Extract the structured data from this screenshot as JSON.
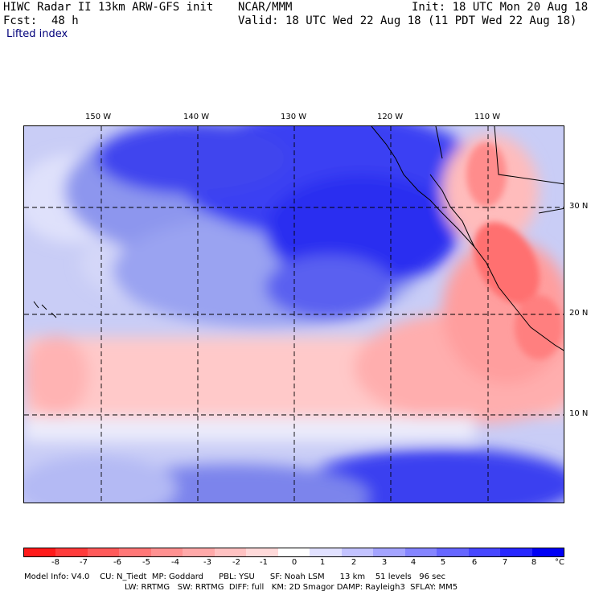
{
  "header": {
    "title": "HIWC Radar II 13km ARW-GFS init",
    "center": "NCAR/MMM",
    "init": "Init: 18 UTC Mon 20 Aug 18",
    "fcst_label": "Fcst:",
    "fcst_value": "48 h",
    "valid": "Valid: 18 UTC Wed 22 Aug 18 (11 PDT Wed 22 Aug 18)",
    "field": "Lifted index"
  },
  "map": {
    "lon_labels": [
      "150 W",
      "140 W",
      "130 W",
      "120 W",
      "110 W"
    ],
    "lat_labels": [
      "30 N",
      "20 N",
      "10 N"
    ]
  },
  "colorbar": {
    "ticks": [
      "-8",
      "-7",
      "-6",
      "-5",
      "-4",
      "-3",
      "-2",
      "-1",
      "0",
      "1",
      "2",
      "3",
      "4",
      "5",
      "6",
      "7",
      "8"
    ],
    "unit": "°C",
    "colors": [
      "#ff1a1a",
      "#ff3b3b",
      "#ff5a5a",
      "#ff7777",
      "#ff9191",
      "#ffa9a9",
      "#ffc2c2",
      "#ffdada",
      "#ffffff",
      "#e1e1ff",
      "#c3c3ff",
      "#a4a4ff",
      "#8585ff",
      "#6666ff",
      "#4747ff",
      "#2727ff",
      "#0000f5"
    ]
  },
  "model_info": {
    "line1": "Model Info: V4.0    CU: N_Tiedt  MP: Goddard      PBL: YSU      SF: Noah LSM      13 km    51 levels   96 sec",
    "line2": "LW: RRTMG   SW: RRTMG  DIFF: full   KM: 2D Smagor DAMP: Rayleigh3  SFLAY: MM5"
  }
}
